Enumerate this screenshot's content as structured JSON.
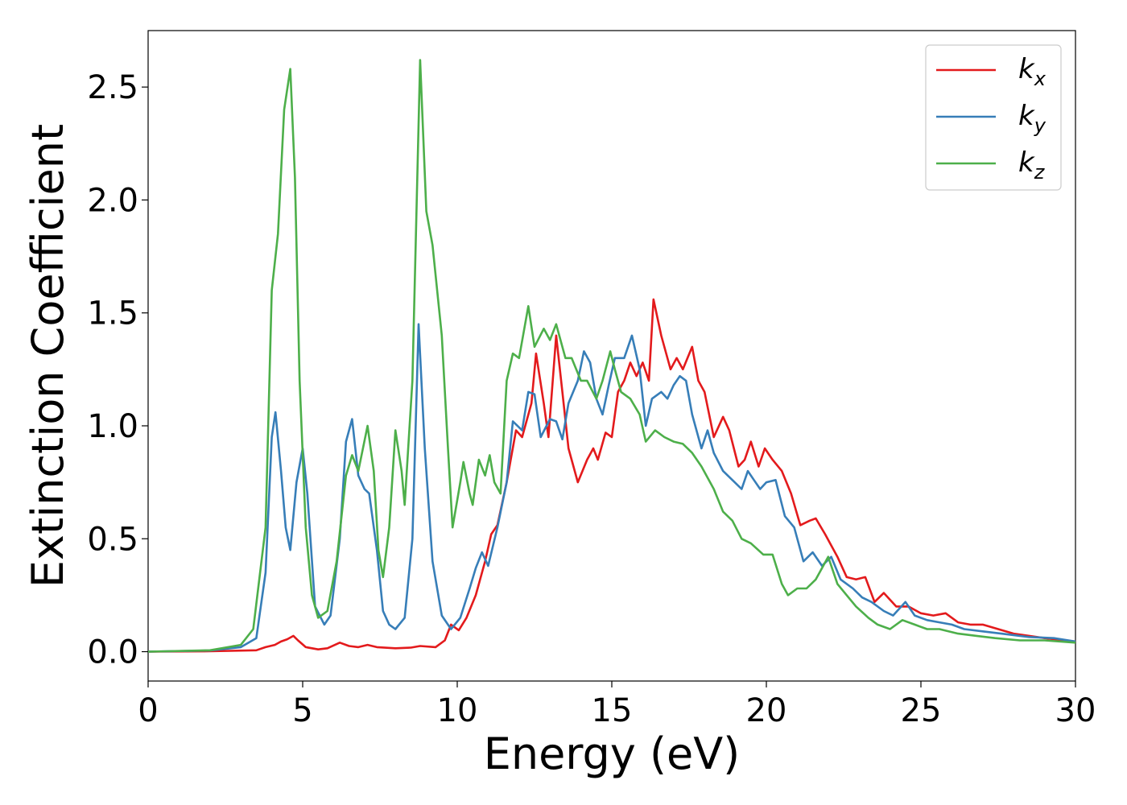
{
  "chart_data": {
    "type": "line",
    "xlabel": "Energy (eV)",
    "ylabel": "Extinction Coefficient",
    "xlim": [
      0,
      30
    ],
    "ylim": [
      -0.13,
      2.75
    ],
    "xticks": [
      0,
      5,
      10,
      15,
      20,
      25,
      30
    ],
    "yticks": [
      0.0,
      0.5,
      1.0,
      1.5,
      2.0,
      2.5
    ],
    "xtick_labels": [
      "0",
      "5",
      "10",
      "15",
      "20",
      "25",
      "30"
    ],
    "ytick_labels": [
      "0.0",
      "0.5",
      "1.0",
      "1.5",
      "2.0",
      "2.5"
    ],
    "grid": false,
    "legend_position": "top-right",
    "series": [
      {
        "name": "k_x",
        "legend_base": "k",
        "legend_sub": "x",
        "color": "#e31a1c",
        "points": [
          [
            0,
            0
          ],
          [
            2,
            0.002
          ],
          [
            3.5,
            0.006
          ],
          [
            3.8,
            0.02
          ],
          [
            4.1,
            0.03
          ],
          [
            4.3,
            0.045
          ],
          [
            4.5,
            0.055
          ],
          [
            4.7,
            0.07
          ],
          [
            4.85,
            0.05
          ],
          [
            5.1,
            0.02
          ],
          [
            5.5,
            0.01
          ],
          [
            5.8,
            0.015
          ],
          [
            6.2,
            0.04
          ],
          [
            6.5,
            0.025
          ],
          [
            6.8,
            0.02
          ],
          [
            7.1,
            0.03
          ],
          [
            7.4,
            0.02
          ],
          [
            8,
            0.015
          ],
          [
            8.5,
            0.018
          ],
          [
            8.8,
            0.025
          ],
          [
            9.3,
            0.02
          ],
          [
            9.6,
            0.05
          ],
          [
            9.8,
            0.12
          ],
          [
            10.05,
            0.095
          ],
          [
            10.3,
            0.15
          ],
          [
            10.6,
            0.25
          ],
          [
            10.9,
            0.4
          ],
          [
            11.1,
            0.52
          ],
          [
            11.3,
            0.56
          ],
          [
            11.6,
            0.75
          ],
          [
            11.9,
            0.98
          ],
          [
            12.1,
            0.95
          ],
          [
            12.4,
            1.1
          ],
          [
            12.55,
            1.32
          ],
          [
            12.8,
            1.1
          ],
          [
            12.95,
            0.95
          ],
          [
            13.2,
            1.4
          ],
          [
            13.4,
            1.15
          ],
          [
            13.6,
            0.9
          ],
          [
            13.9,
            0.75
          ],
          [
            14.2,
            0.85
          ],
          [
            14.4,
            0.9
          ],
          [
            14.55,
            0.85
          ],
          [
            14.8,
            0.97
          ],
          [
            15.0,
            0.95
          ],
          [
            15.2,
            1.15
          ],
          [
            15.4,
            1.2
          ],
          [
            15.6,
            1.28
          ],
          [
            15.8,
            1.22
          ],
          [
            16.0,
            1.28
          ],
          [
            16.2,
            1.2
          ],
          [
            16.35,
            1.56
          ],
          [
            16.6,
            1.4
          ],
          [
            16.9,
            1.25
          ],
          [
            17.1,
            1.3
          ],
          [
            17.3,
            1.25
          ],
          [
            17.6,
            1.35
          ],
          [
            17.8,
            1.2
          ],
          [
            18.0,
            1.15
          ],
          [
            18.3,
            0.95
          ],
          [
            18.6,
            1.04
          ],
          [
            18.8,
            0.98
          ],
          [
            19.1,
            0.82
          ],
          [
            19.3,
            0.85
          ],
          [
            19.5,
            0.93
          ],
          [
            19.75,
            0.82
          ],
          [
            19.95,
            0.9
          ],
          [
            20.2,
            0.85
          ],
          [
            20.5,
            0.8
          ],
          [
            20.8,
            0.7
          ],
          [
            21.1,
            0.56
          ],
          [
            21.4,
            0.58
          ],
          [
            21.6,
            0.59
          ],
          [
            21.9,
            0.52
          ],
          [
            22.3,
            0.42
          ],
          [
            22.6,
            0.33
          ],
          [
            22.9,
            0.32
          ],
          [
            23.2,
            0.33
          ],
          [
            23.5,
            0.22
          ],
          [
            23.8,
            0.26
          ],
          [
            24.2,
            0.2
          ],
          [
            24.6,
            0.2
          ],
          [
            25.0,
            0.17
          ],
          [
            25.4,
            0.16
          ],
          [
            25.8,
            0.17
          ],
          [
            26.2,
            0.13
          ],
          [
            26.6,
            0.12
          ],
          [
            27.0,
            0.12
          ],
          [
            27.5,
            0.1
          ],
          [
            28,
            0.08
          ],
          [
            29,
            0.06
          ],
          [
            30,
            0.045
          ]
        ]
      },
      {
        "name": "k_y",
        "legend_base": "k",
        "legend_sub": "y",
        "color": "#377eb8",
        "points": [
          [
            0,
            0
          ],
          [
            2,
            0.005
          ],
          [
            3,
            0.02
          ],
          [
            3.5,
            0.06
          ],
          [
            3.8,
            0.35
          ],
          [
            4.0,
            0.95
          ],
          [
            4.12,
            1.06
          ],
          [
            4.3,
            0.8
          ],
          [
            4.45,
            0.55
          ],
          [
            4.6,
            0.45
          ],
          [
            4.8,
            0.75
          ],
          [
            5.0,
            0.9
          ],
          [
            5.15,
            0.7
          ],
          [
            5.4,
            0.2
          ],
          [
            5.7,
            0.12
          ],
          [
            5.9,
            0.16
          ],
          [
            6.2,
            0.5
          ],
          [
            6.4,
            0.93
          ],
          [
            6.6,
            1.03
          ],
          [
            6.8,
            0.78
          ],
          [
            7.0,
            0.72
          ],
          [
            7.15,
            0.7
          ],
          [
            7.4,
            0.45
          ],
          [
            7.6,
            0.18
          ],
          [
            7.8,
            0.12
          ],
          [
            8.0,
            0.1
          ],
          [
            8.3,
            0.15
          ],
          [
            8.55,
            0.5
          ],
          [
            8.75,
            1.45
          ],
          [
            8.95,
            0.9
          ],
          [
            9.2,
            0.4
          ],
          [
            9.5,
            0.16
          ],
          [
            9.8,
            0.1
          ],
          [
            10.1,
            0.15
          ],
          [
            10.4,
            0.28
          ],
          [
            10.6,
            0.37
          ],
          [
            10.8,
            0.44
          ],
          [
            11.0,
            0.38
          ],
          [
            11.3,
            0.55
          ],
          [
            11.6,
            0.75
          ],
          [
            11.8,
            1.02
          ],
          [
            12.1,
            0.98
          ],
          [
            12.3,
            1.15
          ],
          [
            12.5,
            1.14
          ],
          [
            12.7,
            0.95
          ],
          [
            13.0,
            1.03
          ],
          [
            13.2,
            1.02
          ],
          [
            13.4,
            0.94
          ],
          [
            13.6,
            1.1
          ],
          [
            13.9,
            1.2
          ],
          [
            14.1,
            1.33
          ],
          [
            14.3,
            1.28
          ],
          [
            14.5,
            1.12
          ],
          [
            14.7,
            1.05
          ],
          [
            14.9,
            1.18
          ],
          [
            15.1,
            1.3
          ],
          [
            15.4,
            1.3
          ],
          [
            15.65,
            1.4
          ],
          [
            15.9,
            1.25
          ],
          [
            16.1,
            1.0
          ],
          [
            16.3,
            1.12
          ],
          [
            16.6,
            1.15
          ],
          [
            16.8,
            1.12
          ],
          [
            17.0,
            1.18
          ],
          [
            17.2,
            1.22
          ],
          [
            17.4,
            1.2
          ],
          [
            17.6,
            1.05
          ],
          [
            17.9,
            0.9
          ],
          [
            18.1,
            0.98
          ],
          [
            18.3,
            0.88
          ],
          [
            18.6,
            0.8
          ],
          [
            18.9,
            0.76
          ],
          [
            19.2,
            0.72
          ],
          [
            19.4,
            0.8
          ],
          [
            19.6,
            0.76
          ],
          [
            19.8,
            0.72
          ],
          [
            20.0,
            0.75
          ],
          [
            20.3,
            0.76
          ],
          [
            20.6,
            0.6
          ],
          [
            20.9,
            0.55
          ],
          [
            21.2,
            0.4
          ],
          [
            21.5,
            0.44
          ],
          [
            21.8,
            0.38
          ],
          [
            22.1,
            0.42
          ],
          [
            22.4,
            0.32
          ],
          [
            22.8,
            0.28
          ],
          [
            23.1,
            0.24
          ],
          [
            23.4,
            0.22
          ],
          [
            23.8,
            0.18
          ],
          [
            24.1,
            0.16
          ],
          [
            24.5,
            0.22
          ],
          [
            24.8,
            0.16
          ],
          [
            25.2,
            0.14
          ],
          [
            25.6,
            0.13
          ],
          [
            26.0,
            0.12
          ],
          [
            26.4,
            0.1
          ],
          [
            27,
            0.09
          ],
          [
            27.6,
            0.08
          ],
          [
            28.5,
            0.065
          ],
          [
            29.3,
            0.06
          ],
          [
            30,
            0.045
          ]
        ]
      },
      {
        "name": "k_z",
        "legend_base": "k",
        "legend_sub": "z",
        "color": "#4daf4a",
        "points": [
          [
            0,
            0
          ],
          [
            2,
            0.006
          ],
          [
            3,
            0.03
          ],
          [
            3.4,
            0.1
          ],
          [
            3.8,
            0.55
          ],
          [
            4.0,
            1.6
          ],
          [
            4.2,
            1.85
          ],
          [
            4.4,
            2.4
          ],
          [
            4.6,
            2.58
          ],
          [
            4.75,
            2.1
          ],
          [
            4.9,
            1.2
          ],
          [
            5.1,
            0.55
          ],
          [
            5.3,
            0.25
          ],
          [
            5.5,
            0.15
          ],
          [
            5.8,
            0.18
          ],
          [
            6.1,
            0.4
          ],
          [
            6.4,
            0.78
          ],
          [
            6.6,
            0.87
          ],
          [
            6.8,
            0.8
          ],
          [
            7.1,
            1.0
          ],
          [
            7.3,
            0.8
          ],
          [
            7.45,
            0.45
          ],
          [
            7.6,
            0.33
          ],
          [
            7.8,
            0.55
          ],
          [
            8.0,
            0.98
          ],
          [
            8.2,
            0.8
          ],
          [
            8.3,
            0.65
          ],
          [
            8.55,
            1.2
          ],
          [
            8.8,
            2.62
          ],
          [
            9.0,
            1.95
          ],
          [
            9.2,
            1.8
          ],
          [
            9.5,
            1.4
          ],
          [
            9.7,
            0.9
          ],
          [
            9.85,
            0.55
          ],
          [
            10.1,
            0.75
          ],
          [
            10.2,
            0.84
          ],
          [
            10.4,
            0.7
          ],
          [
            10.5,
            0.65
          ],
          [
            10.7,
            0.85
          ],
          [
            10.9,
            0.78
          ],
          [
            11.05,
            0.87
          ],
          [
            11.2,
            0.75
          ],
          [
            11.4,
            0.7
          ],
          [
            11.6,
            1.2
          ],
          [
            11.8,
            1.32
          ],
          [
            12.0,
            1.3
          ],
          [
            12.3,
            1.53
          ],
          [
            12.5,
            1.35
          ],
          [
            12.8,
            1.43
          ],
          [
            13.0,
            1.38
          ],
          [
            13.2,
            1.45
          ],
          [
            13.5,
            1.3
          ],
          [
            13.7,
            1.3
          ],
          [
            14.0,
            1.2
          ],
          [
            14.2,
            1.2
          ],
          [
            14.5,
            1.12
          ],
          [
            14.7,
            1.2
          ],
          [
            14.95,
            1.33
          ],
          [
            15.1,
            1.25
          ],
          [
            15.3,
            1.15
          ],
          [
            15.6,
            1.12
          ],
          [
            15.9,
            1.05
          ],
          [
            16.1,
            0.93
          ],
          [
            16.4,
            0.98
          ],
          [
            16.7,
            0.95
          ],
          [
            17.0,
            0.93
          ],
          [
            17.3,
            0.92
          ],
          [
            17.6,
            0.88
          ],
          [
            17.9,
            0.82
          ],
          [
            18.3,
            0.72
          ],
          [
            18.6,
            0.62
          ],
          [
            18.9,
            0.58
          ],
          [
            19.2,
            0.5
          ],
          [
            19.5,
            0.48
          ],
          [
            19.9,
            0.43
          ],
          [
            20.2,
            0.43
          ],
          [
            20.5,
            0.3
          ],
          [
            20.7,
            0.25
          ],
          [
            21.0,
            0.28
          ],
          [
            21.3,
            0.28
          ],
          [
            21.6,
            0.32
          ],
          [
            22.0,
            0.42
          ],
          [
            22.3,
            0.3
          ],
          [
            22.6,
            0.25
          ],
          [
            22.9,
            0.2
          ],
          [
            23.3,
            0.15
          ],
          [
            23.6,
            0.12
          ],
          [
            24.0,
            0.1
          ],
          [
            24.4,
            0.14
          ],
          [
            24.8,
            0.12
          ],
          [
            25.2,
            0.1
          ],
          [
            25.6,
            0.1
          ],
          [
            26.2,
            0.08
          ],
          [
            26.8,
            0.07
          ],
          [
            27.4,
            0.06
          ],
          [
            28.2,
            0.05
          ],
          [
            29,
            0.05
          ],
          [
            30,
            0.04
          ]
        ]
      }
    ]
  }
}
